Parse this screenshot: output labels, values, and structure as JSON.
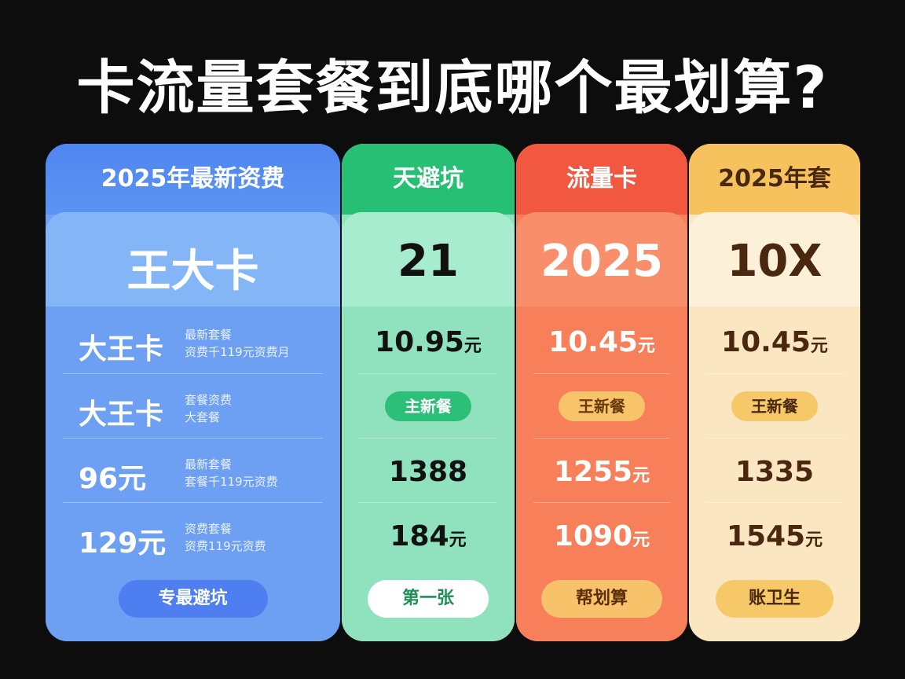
{
  "title": "卡流量套餐到底哪个最划算?",
  "columns": [
    {
      "header": "2025年最新资费",
      "hero": "王大卡",
      "rows": [
        {
          "main": "大王卡",
          "note1": "最新套餐",
          "note2": "资费千119元资费月"
        },
        {
          "main": "大王卡",
          "note1": "套餐资费",
          "note2": "大套餐"
        },
        {
          "main": "96元",
          "note1": "最新套餐",
          "note2": "套餐千119元资费"
        },
        {
          "main": "129元",
          "note1": "资费套餐",
          "note2": "资费119元资费"
        }
      ],
      "button": "专最避坑"
    },
    {
      "header": "天避坑",
      "hero": "21",
      "rows": [
        {
          "main": "10.95",
          "unit": "元"
        },
        {
          "badge": "主新餐"
        },
        {
          "main": "1388"
        },
        {
          "main": "184",
          "unit": "元"
        }
      ],
      "button": "第一张"
    },
    {
      "header": "流量卡",
      "hero": "2025",
      "rows": [
        {
          "main": "10.45",
          "unit": "元"
        },
        {
          "badge": "王新餐"
        },
        {
          "main": "1255",
          "unit": "元"
        },
        {
          "main": "1090",
          "unit": "元"
        }
      ],
      "button": "帮划算"
    },
    {
      "header": "2025年套",
      "hero": "10Ⅹ",
      "rows": [
        {
          "main": "10.45",
          "unit": "元"
        },
        {
          "badge": "王新餐"
        },
        {
          "main": "1335"
        },
        {
          "main": "1545",
          "unit": "元"
        }
      ],
      "button": "账卫生"
    }
  ]
}
